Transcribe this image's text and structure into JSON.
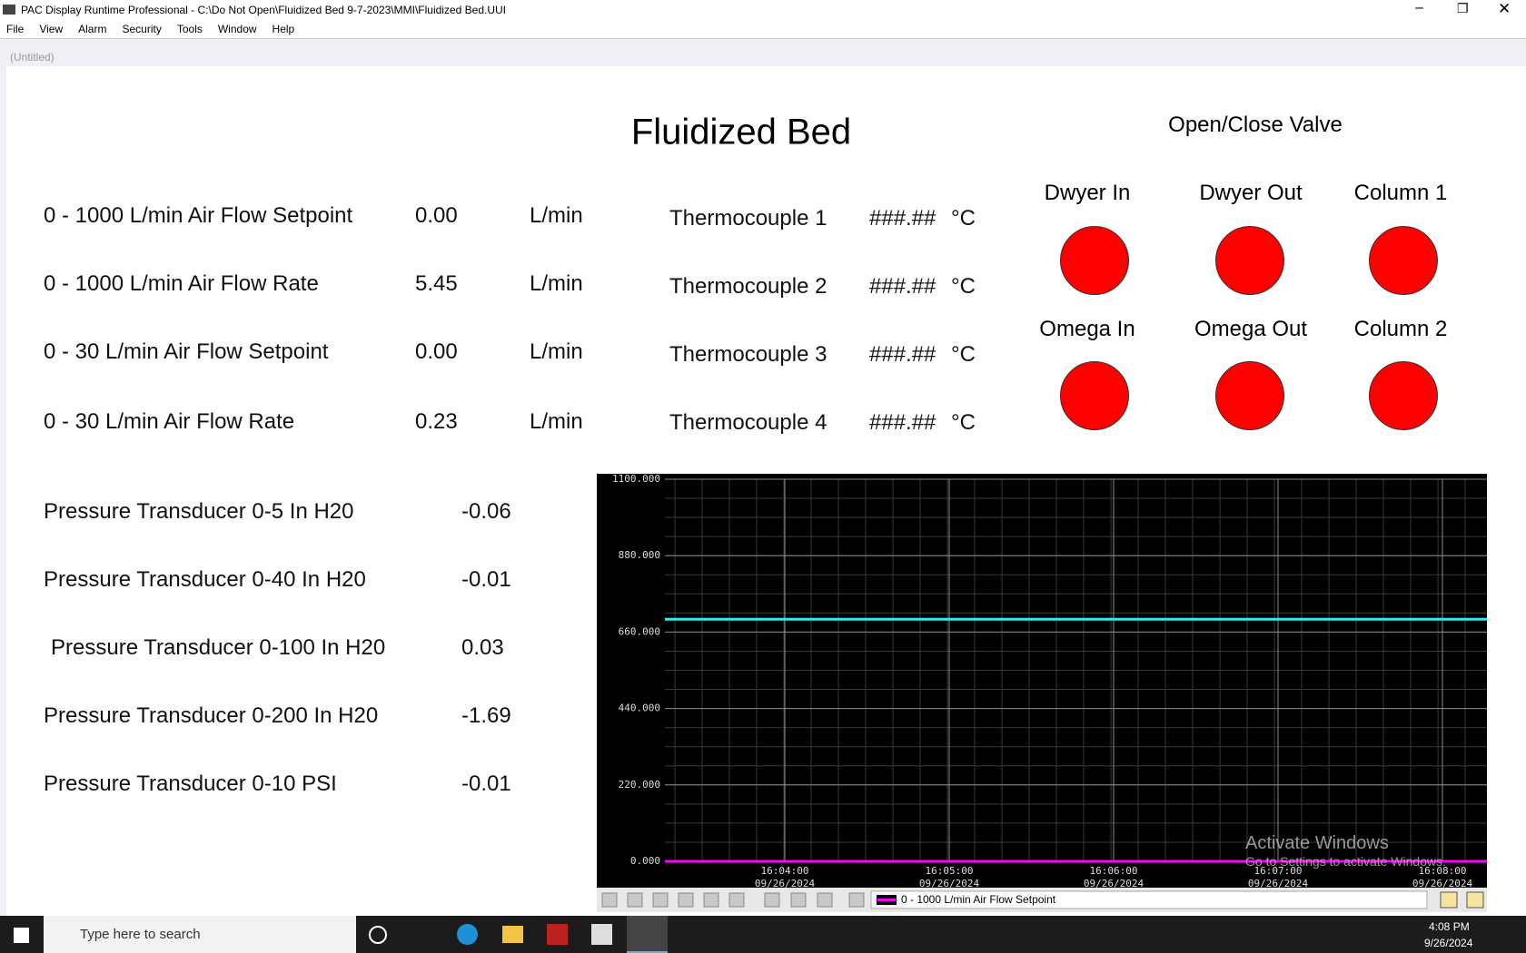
{
  "window": {
    "title": "PAC Display Runtime Professional - C:\\Do Not Open\\Fluidized Bed 9-7-2023\\MMI\\Fluidized Bed.UUI",
    "menu": [
      "File",
      "View",
      "Alarm",
      "Security",
      "Tools",
      "Window",
      "Help"
    ],
    "document": "(Untitled)"
  },
  "screen": {
    "title": "Fluidized Bed",
    "valve_title": "Open/Close Valve",
    "flows": [
      {
        "label": "0 - 1000 L/min Air Flow Setpoint",
        "value": "0.00",
        "unit": "L/min"
      },
      {
        "label": "0 - 1000 L/min Air Flow Rate",
        "value": "5.45",
        "unit": "L/min"
      },
      {
        "label": "0 - 30 L/min Air Flow Setpoint",
        "value": "0.00",
        "unit": "L/min"
      },
      {
        "label": "0 - 30 L/min Air Flow Rate",
        "value": "0.23",
        "unit": "L/min"
      }
    ],
    "thermocouples": [
      {
        "label": "Thermocouple 1",
        "value": "###.##",
        "unit": "°C"
      },
      {
        "label": "Thermocouple 2",
        "value": "###.##",
        "unit": "°C"
      },
      {
        "label": "Thermocouple 3",
        "value": "###.##",
        "unit": "°C"
      },
      {
        "label": "Thermocouple 4",
        "value": "###.##",
        "unit": "°C"
      }
    ],
    "valves": [
      "Dwyer In",
      "Dwyer Out",
      "Column 1",
      "Omega In",
      "Omega Out",
      "Column 2"
    ],
    "pressures": [
      {
        "label": "Pressure Transducer 0-5 In H20",
        "value": "-0.06"
      },
      {
        "label": "Pressure Transducer 0-40 In H20",
        "value": "-0.01"
      },
      {
        "label": "Pressure Transducer 0-100 In H20",
        "value": "0.03"
      },
      {
        "label": "Pressure Transducer 0-200 In H20",
        "value": "-1.69"
      },
      {
        "label": "Pressure Transducer 0-10 PSI",
        "value": "-0.01"
      }
    ]
  },
  "trend": {
    "ylim": [
      0,
      1100
    ],
    "yticks": [
      {
        "value": 0,
        "label": "0.000"
      },
      {
        "value": 220,
        "label": "220.000"
      },
      {
        "value": 440,
        "label": "440.000"
      },
      {
        "value": 660,
        "label": "660.000"
      },
      {
        "value": 880,
        "label": "880.000"
      },
      {
        "value": 1100,
        "label": "1100.000"
      }
    ],
    "xticks": [
      {
        "time": "16:04:00",
        "date": "09/26/2024"
      },
      {
        "time": "16:05:00",
        "date": "09/26/2024"
      },
      {
        "time": "16:06:00",
        "date": "09/26/2024"
      },
      {
        "time": "16:07:00",
        "date": "09/26/2024"
      },
      {
        "time": "16:08:00",
        "date": "09/26/2024"
      }
    ],
    "series": [
      {
        "name": "0 - 1000 L/min Air Flow Setpoint",
        "color": "#ff00ff",
        "values": [
          0,
          0
        ]
      },
      {
        "color": "#00ffff",
        "values": [
          697,
          697
        ]
      }
    ]
  },
  "watermark": {
    "title": "Activate Windows",
    "text": "Go to Settings to activate Windows."
  },
  "taskbar": {
    "search": "Type here to search",
    "time": "4:08 PM",
    "date": "9/26/2024"
  }
}
